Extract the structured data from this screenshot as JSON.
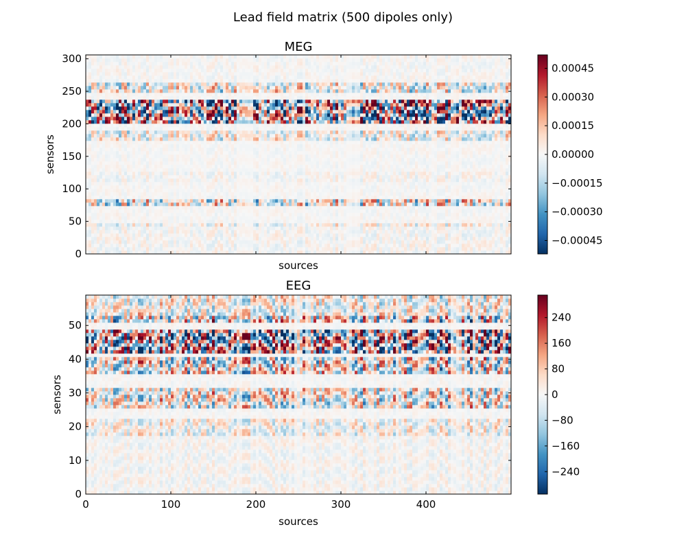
{
  "figure": {
    "suptitle": "Lead field matrix (500 dipoles only)"
  },
  "chart_data": [
    {
      "type": "heatmap",
      "title": "MEG",
      "xlabel": "sources",
      "ylabel": "sensors",
      "xlim": [
        0,
        500
      ],
      "ylim": [
        0,
        306
      ],
      "xticks": [
        0,
        100,
        200,
        300,
        400
      ],
      "show_xticklabels": false,
      "yticks": [
        0,
        50,
        100,
        150,
        200,
        250,
        300
      ],
      "colormap": "RdBu_r",
      "colorbar": {
        "vmin": -0.00052,
        "vmax": 0.00052,
        "ticks": [
          -0.00045,
          -0.0003,
          -0.00015,
          0,
          0.00015,
          0.0003,
          0.00045
        ],
        "ticklabels": [
          "−0.00045",
          "−0.00030",
          "−0.00015",
          "0.00000",
          "0.00015",
          "0.00030",
          "0.00045"
        ]
      },
      "intensity_bands": [
        {
          "sensor_range": [
            0,
            40
          ],
          "relative_amplitude": 0.12
        },
        {
          "sensor_range": [
            40,
            50
          ],
          "relative_amplitude": 0.25
        },
        {
          "sensor_range": [
            75,
            85
          ],
          "relative_amplitude": 0.55
        },
        {
          "sensor_range": [
            110,
            125
          ],
          "relative_amplitude": 0.12
        },
        {
          "sensor_range": [
            175,
            190
          ],
          "relative_amplitude": 0.35
        },
        {
          "sensor_range": [
            200,
            240
          ],
          "relative_amplitude": 1.0
        },
        {
          "sensor_range": [
            250,
            265
          ],
          "relative_amplitude": 0.45
        },
        {
          "sensor_range": [
            265,
            306
          ],
          "relative_amplitude": 0.08
        }
      ]
    },
    {
      "type": "heatmap",
      "title": "EEG",
      "xlabel": "sources",
      "ylabel": "sensors",
      "xlim": [
        0,
        500
      ],
      "ylim": [
        0,
        59
      ],
      "xticks": [
        0,
        100,
        200,
        300,
        400
      ],
      "xticklabels": [
        "0",
        "100",
        "200",
        "300",
        "400"
      ],
      "yticks": [
        0,
        10,
        20,
        30,
        40,
        50
      ],
      "colormap": "RdBu_r",
      "colorbar": {
        "vmin": -310,
        "vmax": 310,
        "ticks": [
          -240,
          -160,
          -80,
          0,
          80,
          160,
          240
        ],
        "ticklabels": [
          "−240",
          "−160",
          "−80",
          "0",
          "80",
          "160",
          "240"
        ]
      },
      "intensity_bands": [
        {
          "sensor_range": [
            0,
            17
          ],
          "relative_amplitude": 0.12
        },
        {
          "sensor_range": [
            17,
            22
          ],
          "relative_amplitude": 0.3
        },
        {
          "sensor_range": [
            25,
            32
          ],
          "relative_amplitude": 0.55
        },
        {
          "sensor_range": [
            36,
            41
          ],
          "relative_amplitude": 0.65
        },
        {
          "sensor_range": [
            42,
            49
          ],
          "relative_amplitude": 1.0
        },
        {
          "sensor_range": [
            51,
            53
          ],
          "relative_amplitude": 0.75
        },
        {
          "sensor_range": [
            53,
            59
          ],
          "relative_amplitude": 0.4
        }
      ]
    }
  ]
}
